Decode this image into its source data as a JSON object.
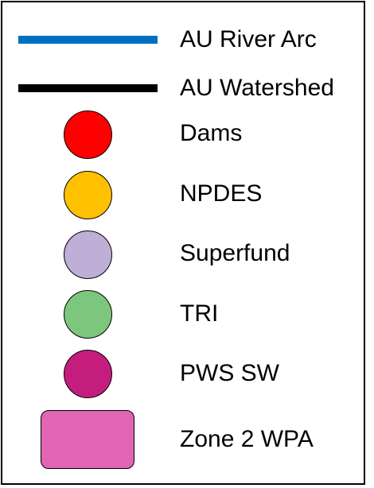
{
  "legend": {
    "items": [
      {
        "label": "AU River Arc",
        "symbol": "line",
        "color": "#0070c0"
      },
      {
        "label": "AU Watershed",
        "symbol": "line",
        "color": "#000000"
      },
      {
        "label": "Dams",
        "symbol": "circle",
        "color": "#ff0000"
      },
      {
        "label": "NPDES",
        "symbol": "circle",
        "color": "#ffc000"
      },
      {
        "label": "Superfund",
        "symbol": "circle",
        "color": "#bfaed6"
      },
      {
        "label": "TRI",
        "symbol": "circle",
        "color": "#7dc67d"
      },
      {
        "label": "PWS SW",
        "symbol": "circle",
        "color": "#c51d7e"
      },
      {
        "label": "Zone 2 WPA",
        "symbol": "rounded-rectangle",
        "color": "#e264b4"
      }
    ]
  }
}
